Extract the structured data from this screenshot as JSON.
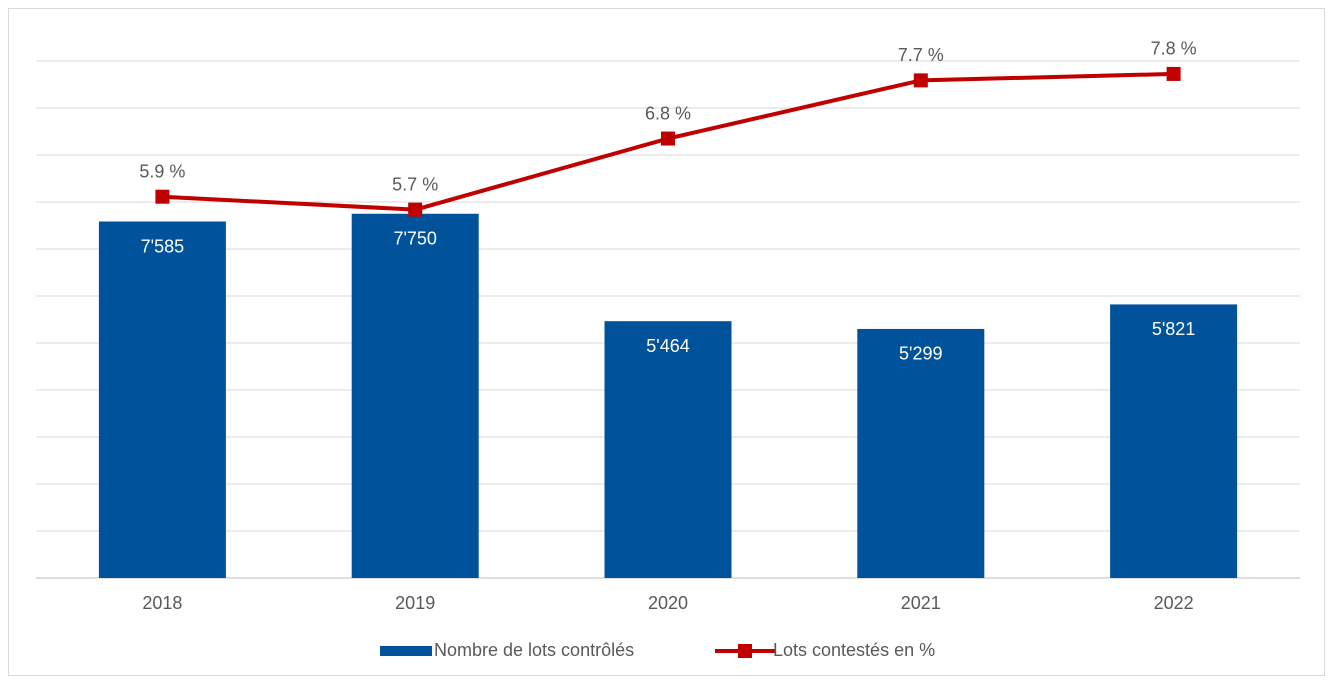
{
  "chart_data": {
    "type": "bar",
    "categories": [
      "2018",
      "2019",
      "2020",
      "2021",
      "2022"
    ],
    "ylim": [
      0,
      11000
    ],
    "yticks": [
      0,
      1000,
      2000,
      3000,
      4000,
      5000,
      6000,
      7000,
      8000,
      9000,
      10000,
      11000
    ],
    "y2lim": [
      0,
      8
    ],
    "grid": true,
    "legend": "bottom",
    "series": [
      {
        "name": "Nombre de lots contrôlés",
        "type": "bar",
        "color": "#00529b",
        "values": [
          7585,
          7750,
          5464,
          5299,
          5821
        ],
        "value_labels": [
          "7'585",
          "7'750",
          "5'464",
          "5'299",
          "5'821"
        ]
      },
      {
        "name": "Lots contestés en %",
        "type": "line",
        "axis": "y2",
        "color": "#c00000",
        "values": [
          5.9,
          5.7,
          6.8,
          7.7,
          7.8
        ],
        "value_labels": [
          "5.9 %",
          "5.7 %",
          "6.8 %",
          "7.7 %",
          "7.8 %"
        ]
      }
    ]
  }
}
